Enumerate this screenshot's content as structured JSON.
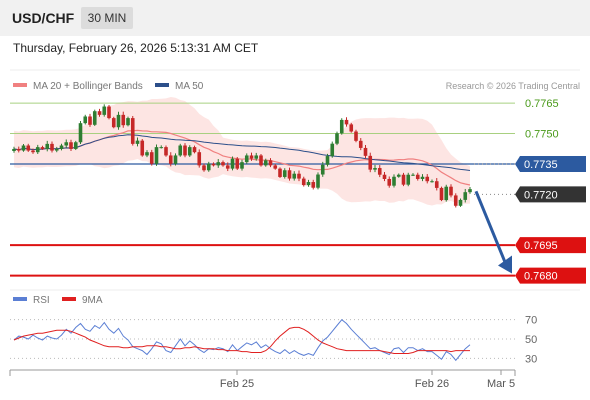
{
  "header": {
    "symbol": "USD/CHF",
    "timeframe": "30 MIN"
  },
  "datetime": "Thursday, February 26, 2026 5:13:31 AM CET",
  "legend": {
    "ma20": {
      "label": "MA 20 + Bollinger Bands",
      "color": "#f08080"
    },
    "ma50": {
      "label": "MA 50",
      "color": "#2c4f8a"
    }
  },
  "credit": "Research © 2026 Trading Central",
  "rsi_legend": {
    "rsi": {
      "label": "RSI",
      "color": "#5b7fd4"
    },
    "ma9": {
      "label": "9MA",
      "color": "#e02020"
    }
  },
  "colors": {
    "bull": "#2e7d32",
    "bear": "#c62828",
    "resistance": "#a8d080",
    "pivot": "#2c5aa0",
    "support": "#dd1111",
    "current": "#333333",
    "band": "#fde2e0"
  },
  "chart_data": [
    {
      "type": "candlestick",
      "title": "",
      "ylim": [
        0.76729,
        0.77813
      ],
      "x_ticks": [
        "Feb 25",
        "Feb 26",
        "Mar 5"
      ],
      "levels": [
        {
          "label": "0.7765",
          "value": 0.7765,
          "kind": "resistance"
        },
        {
          "label": "0.7750",
          "value": 0.775,
          "kind": "resistance"
        },
        {
          "label": "0.7735",
          "value": 0.7735,
          "kind": "pivot"
        },
        {
          "label": "0.7720",
          "value": 0.772,
          "kind": "current"
        },
        {
          "label": "0.7695",
          "value": 0.7695,
          "kind": "support"
        },
        {
          "label": "0.7680",
          "value": 0.768,
          "kind": "support"
        }
      ],
      "close": [
        0.77424,
        0.77416,
        0.77441,
        0.77416,
        0.77408,
        0.77433,
        0.77424,
        0.77449,
        0.77416,
        0.77424,
        0.77441,
        0.77457,
        0.77424,
        0.77457,
        0.77551,
        0.77584,
        0.77543,
        0.7761,
        0.77592,
        0.77633,
        0.77576,
        0.77531,
        0.77592,
        0.77541,
        0.77576,
        0.77449,
        0.77465,
        0.77392,
        0.77408,
        0.77351,
        0.77433,
        0.77433,
        0.77392,
        0.77351,
        0.77392,
        0.77441,
        0.77392,
        0.77433,
        0.77408,
        0.77343,
        0.77319,
        0.77351,
        0.77343,
        0.77359,
        0.77343,
        0.77327,
        0.77376,
        0.77327,
        0.77359,
        0.77392,
        0.77376,
        0.77392,
        0.77343,
        0.77368,
        0.77343,
        0.77327,
        0.77286,
        0.77319,
        0.77278,
        0.77302,
        0.77278,
        0.77246,
        0.77261,
        0.77233,
        0.77298,
        0.77346,
        0.77389,
        0.7745,
        0.77501,
        0.77567,
        0.77545,
        0.7751,
        0.77464,
        0.77429,
        0.7739,
        0.77322,
        0.7733,
        0.77297,
        0.77276,
        0.77243,
        0.77287,
        0.77297,
        0.77248,
        0.77297,
        0.77297,
        0.77276,
        0.77287,
        0.77265,
        0.77265,
        0.77232,
        0.77172,
        0.77238,
        0.77195,
        0.77144,
        0.77173,
        0.77211,
        0.77226
      ],
      "rsi_ylim": [
        20,
        80
      ],
      "rsi_levels": [
        70,
        50,
        30
      ],
      "rsi": [
        49,
        53,
        52,
        50,
        54,
        51,
        49,
        53,
        51,
        50,
        54,
        60,
        56,
        62,
        66,
        60,
        58,
        64,
        61,
        67,
        60,
        56,
        61,
        53,
        49,
        42,
        40,
        38,
        34,
        40,
        47,
        45,
        38,
        36,
        43,
        50,
        43,
        48,
        44,
        39,
        36,
        40,
        39,
        41,
        40,
        37,
        44,
        38,
        42,
        46,
        44,
        47,
        41,
        44,
        40,
        37,
        35,
        39,
        35,
        38,
        35,
        33,
        35,
        33,
        41,
        48,
        52,
        58,
        64,
        70,
        66,
        60,
        55,
        50,
        45,
        40,
        41,
        38,
        36,
        34,
        40,
        41,
        36,
        41,
        41,
        38,
        40,
        37,
        37,
        33,
        29,
        37,
        34,
        28,
        34,
        40,
        44
      ],
      "rsi_ma9": [
        49,
        51,
        53,
        54,
        55,
        56,
        56,
        57,
        58,
        59,
        59,
        59,
        58,
        56,
        54,
        52,
        49,
        47,
        45,
        43,
        42,
        42,
        42,
        41,
        41,
        42,
        42,
        42,
        43,
        43,
        43,
        42,
        42,
        41,
        40,
        40,
        41,
        41,
        42,
        41,
        40,
        40,
        40,
        39,
        39,
        38,
        38,
        38,
        37,
        37,
        36,
        36,
        36,
        38,
        42,
        48,
        53,
        57,
        61,
        62,
        62,
        60,
        57,
        53,
        49,
        46,
        44,
        42,
        40,
        39,
        38,
        38,
        38,
        38,
        38,
        38,
        38,
        38,
        37,
        36,
        35,
        35,
        35,
        35,
        36,
        38,
        38,
        38,
        38,
        38,
        38,
        38,
        37,
        38,
        38,
        38,
        38
      ]
    }
  ]
}
